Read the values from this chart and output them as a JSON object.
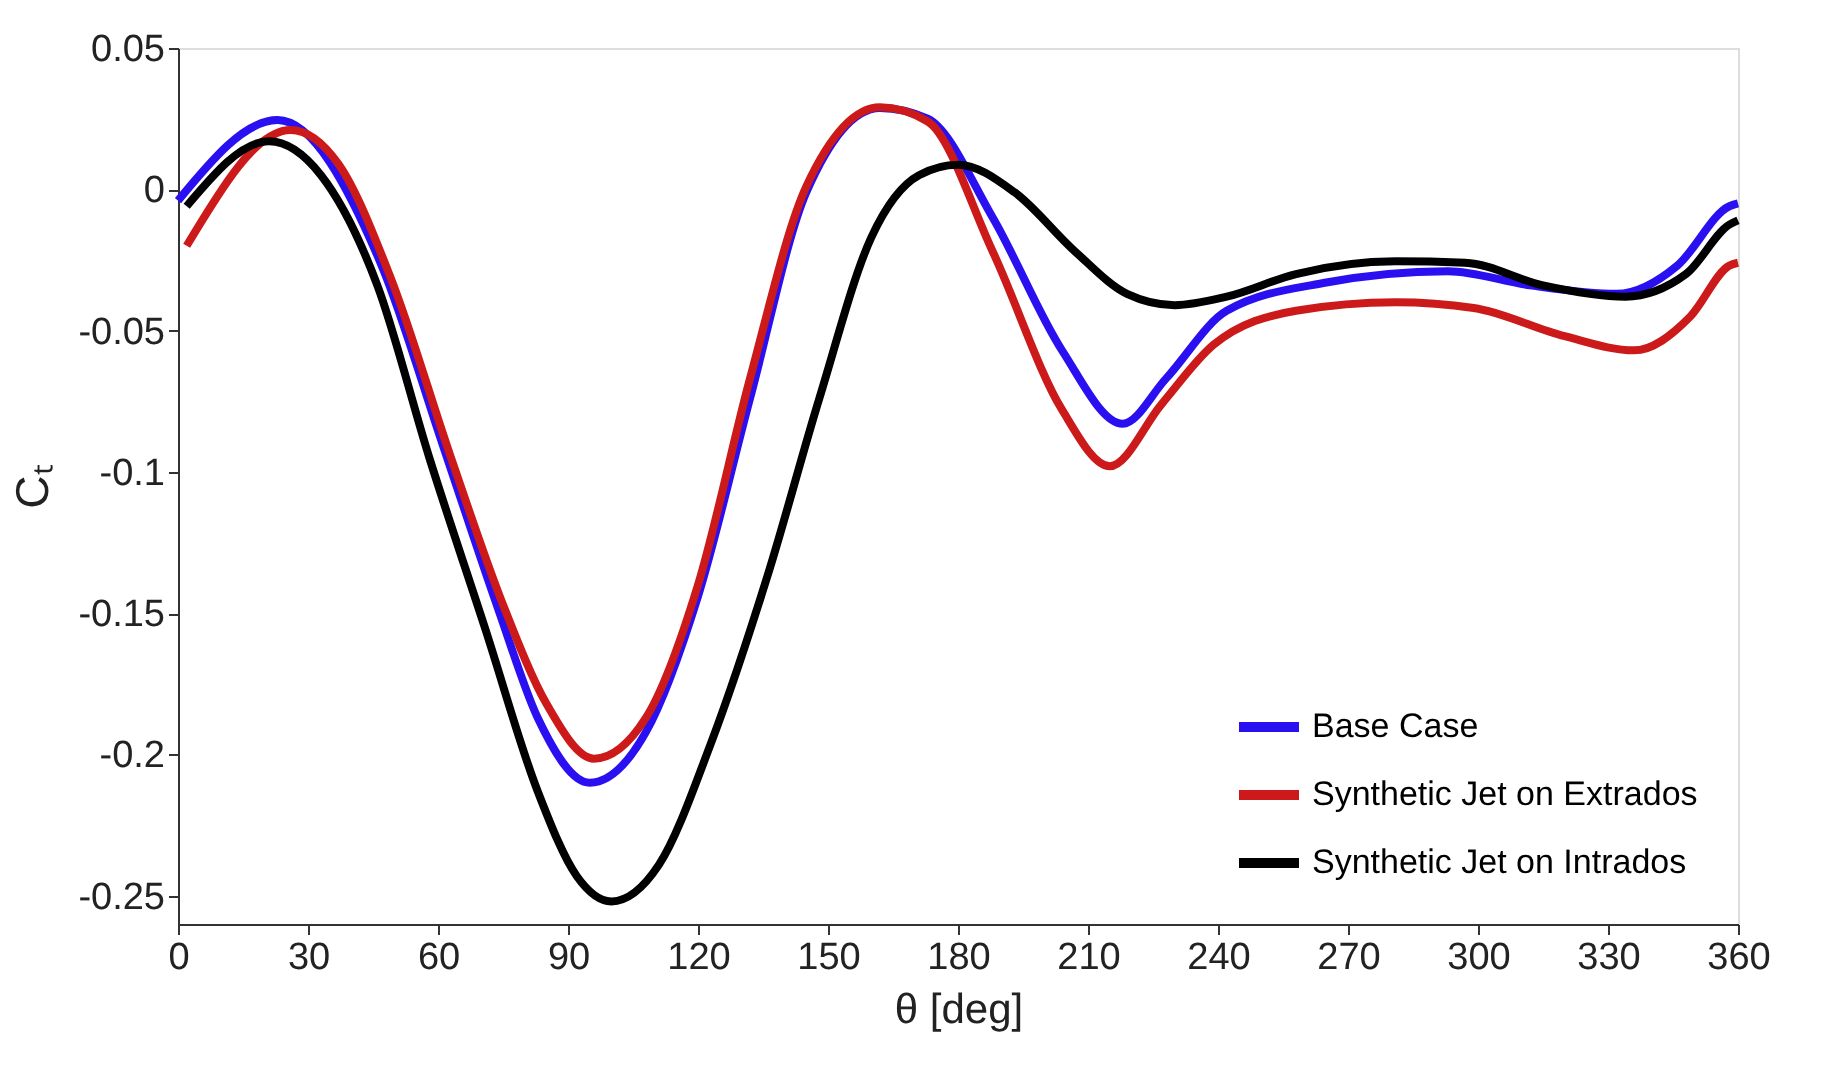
{
  "chart_data": {
    "type": "line",
    "xlabel": "θ [deg]",
    "ylabel": "Cₜ",
    "xlim": [
      0,
      360
    ],
    "ylim": [
      -0.26,
      0.05
    ],
    "xticks": [
      0,
      30,
      60,
      90,
      120,
      150,
      180,
      210,
      240,
      270,
      300,
      330,
      360
    ],
    "yticks": [
      {
        "value": 0.05,
        "label": "0.05"
      },
      {
        "value": 0,
        "label": "0"
      },
      {
        "value": -0.05,
        "label": "-0.05"
      },
      {
        "value": -0.1,
        "label": "-0.1"
      },
      {
        "value": -0.15,
        "label": "-0.15"
      },
      {
        "value": -0.2,
        "label": "-0.2"
      },
      {
        "value": -0.25,
        "label": "-0.25"
      }
    ],
    "grid": false,
    "legend": "bottom right",
    "line_style": "solid",
    "marker": "none",
    "series": [
      {
        "name": "Base Case",
        "color": "#2a10f0",
        "x": [
          0,
          23,
          47,
          61,
          74,
          83,
          95,
          108,
          120,
          132,
          145,
          162,
          173,
          188,
          204,
          218,
          228,
          242,
          265,
          293,
          312,
          332,
          346,
          358,
          360
        ],
        "values": [
          -0.004,
          0.0245,
          -0.027,
          -0.09,
          -0.149,
          -0.187,
          -0.21,
          -0.192,
          -0.144,
          -0.074,
          -0.001,
          0.0288,
          0.025,
          -0.01,
          -0.057,
          -0.083,
          -0.067,
          -0.043,
          -0.033,
          -0.029,
          -0.034,
          -0.037,
          -0.027,
          -0.006,
          -0.005
        ]
      },
      {
        "name": "Synthetic Jet on Extrados",
        "color": "#cc1a1a",
        "x": [
          2,
          26,
          37,
          49,
          63,
          75,
          85,
          96,
          108,
          120,
          132,
          145,
          162,
          173,
          188,
          204,
          215,
          227,
          239,
          258,
          281,
          299,
          320,
          336,
          349,
          358,
          360
        ],
        "values": [
          -0.02,
          0.021,
          0.009,
          -0.031,
          -0.095,
          -0.147,
          -0.182,
          -0.2015,
          -0.187,
          -0.14,
          -0.067,
          0.001,
          0.029,
          0.024,
          -0.022,
          -0.078,
          -0.098,
          -0.076,
          -0.055,
          -0.043,
          -0.04,
          -0.042,
          -0.052,
          -0.057,
          -0.045,
          -0.027,
          -0.026
        ]
      },
      {
        "name": "Synthetic Jet on Intrados",
        "color": "#000000",
        "x": [
          2,
          21,
          33,
          46,
          58,
          71,
          83,
          92,
          100,
          111,
          123,
          136,
          148,
          160,
          171,
          180,
          193,
          207,
          219,
          230,
          242,
          258,
          281,
          297,
          315,
          334,
          348,
          358,
          360
        ],
        "values": [
          -0.006,
          0.017,
          0.005,
          -0.034,
          -0.095,
          -0.156,
          -0.213,
          -0.243,
          -0.252,
          -0.239,
          -0.196,
          -0.137,
          -0.074,
          -0.017,
          0.005,
          0.0087,
          -0.001,
          -0.022,
          -0.037,
          -0.041,
          -0.038,
          -0.03,
          -0.0255,
          -0.026,
          -0.034,
          -0.038,
          -0.03,
          -0.0125,
          -0.011
        ]
      }
    ]
  }
}
